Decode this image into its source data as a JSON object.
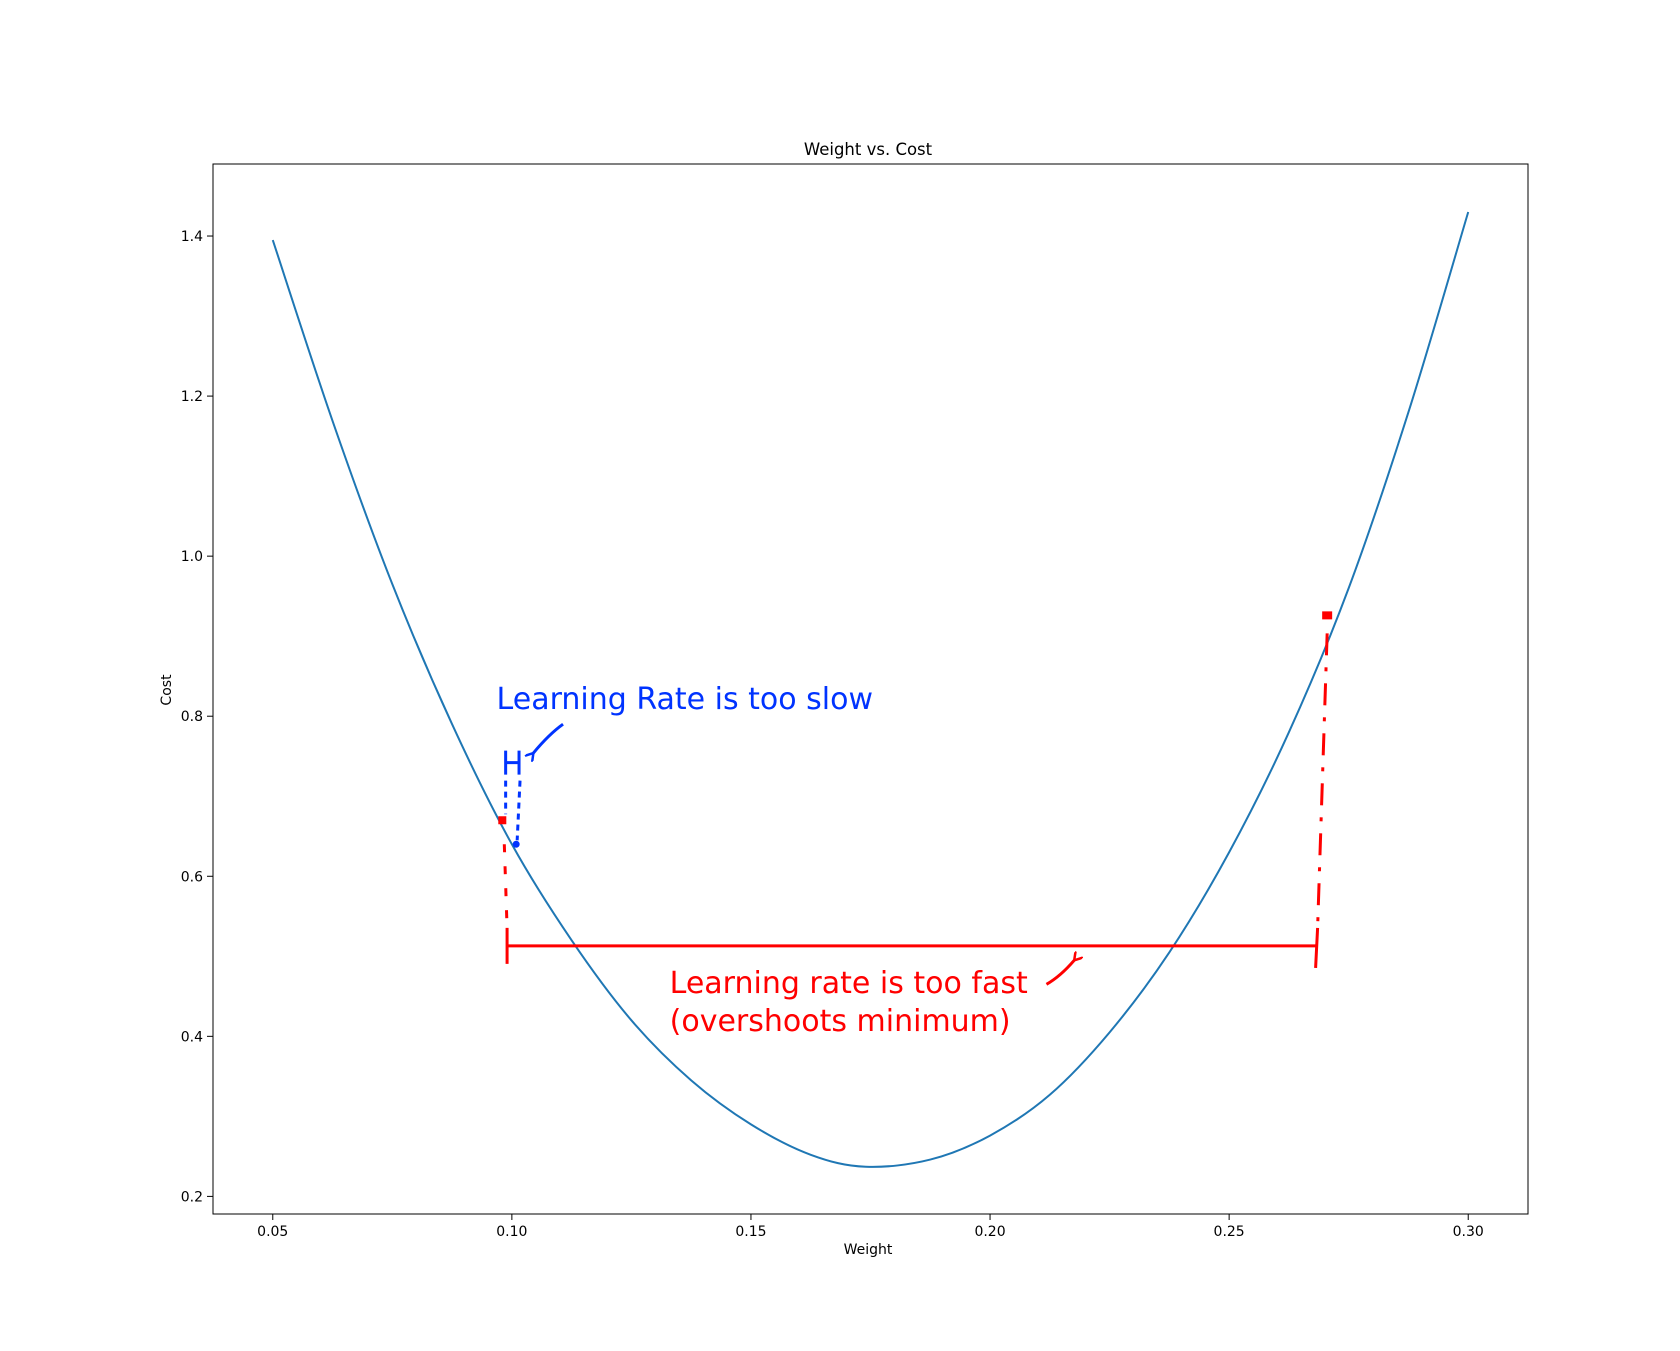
{
  "chart_data": {
    "type": "line",
    "title": "Weight vs. Cost",
    "xlabel": "Weight",
    "ylabel": "Cost",
    "xlim": [
      0.0375,
      0.3125
    ],
    "ylim": [
      0.178,
      1.49
    ],
    "xticks": [
      0.05,
      0.1,
      0.15,
      0.2,
      0.25,
      0.3
    ],
    "xtick_labels": [
      "0.05",
      "0.10",
      "0.15",
      "0.20",
      "0.25",
      "0.30"
    ],
    "yticks": [
      0.2,
      0.4,
      0.6,
      0.8,
      1.0,
      1.2,
      1.4
    ],
    "ytick_labels": [
      "0.2",
      "0.4",
      "0.6",
      "0.8",
      "1.0",
      "1.2",
      "1.4"
    ],
    "grid": false,
    "series": [
      {
        "color": "#1f77b4",
        "x": [
          0.05,
          0.0625,
          0.075,
          0.0875,
          0.1,
          0.1125,
          0.125,
          0.1375,
          0.15,
          0.1625,
          0.174,
          0.1875,
          0.2,
          0.2125,
          0.225,
          0.2375,
          0.25,
          0.2625,
          0.275,
          0.2875,
          0.3
        ],
        "y": [
          1.395,
          1.169,
          0.965,
          0.79,
          0.64,
          0.52,
          0.42,
          0.345,
          0.29,
          0.252,
          0.237,
          0.246,
          0.276,
          0.327,
          0.405,
          0.505,
          0.63,
          0.78,
          0.96,
          1.18,
          1.43
        ]
      }
    ],
    "annotations": {
      "slow": {
        "text": "Learning Rate is too slow",
        "color": "#0033ff",
        "text_pos": [
          0.0968,
          0.809
        ],
        "bracket_x": [
          0.0987,
          0.1015
        ],
        "bracket_y": 0.742,
        "point": [
          0.1009,
          0.64
        ],
        "arrow_from": [
          0.1107,
          0.79
        ],
        "arrow_to": [
          0.1045,
          0.754
        ]
      },
      "fast": {
        "lines": [
          "Learning rate is too fast",
          "(overshoots minimum)"
        ],
        "color": "#ff0000",
        "text_pos": [
          0.133,
          0.454
        ],
        "line_y": 0.513,
        "line_x": [
          0.099,
          0.2685
        ],
        "start_point": [
          0.098,
          0.67
        ],
        "end_point": [
          0.2705,
          0.926
        ],
        "arrow_from": [
          0.2118,
          0.465
        ],
        "arrow_to": [
          0.2176,
          0.495
        ]
      }
    }
  }
}
